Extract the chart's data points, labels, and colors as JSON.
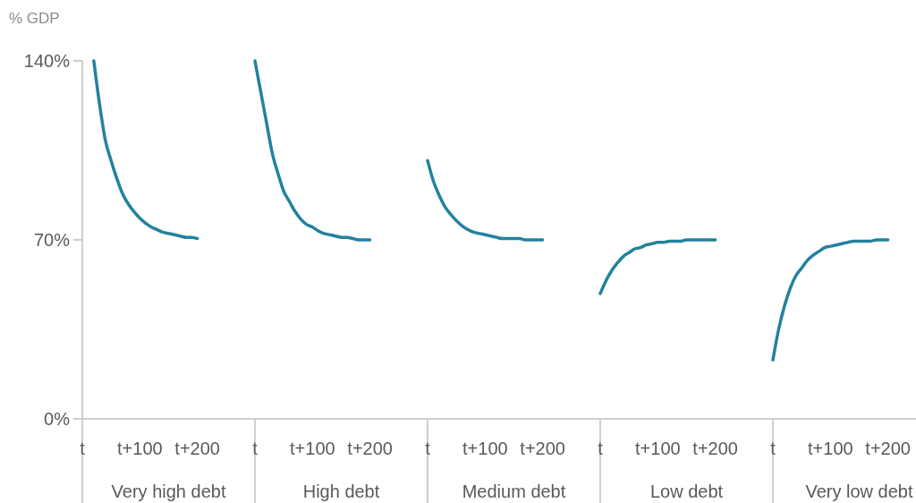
{
  "chart_data": [
    {
      "type": "line",
      "ylabel": "% GDP",
      "xlabel": "Very high debt",
      "categories": [
        "t",
        null,
        null,
        null,
        null,
        null,
        null,
        null,
        null,
        null,
        "t+100",
        null,
        null,
        null,
        null,
        null,
        null,
        null,
        null,
        null,
        "t+200",
        null,
        null,
        null,
        null,
        null,
        null,
        null,
        null,
        null,
        null
      ],
      "ylim": [
        0,
        140
      ],
      "yticks": [
        {
          "value": 0,
          "label": "0%"
        },
        {
          "value": 70,
          "label": "70%"
        },
        {
          "value": 140,
          "label": "140%"
        }
      ],
      "grid": false,
      "tick_labels": true,
      "series": [
        {
          "color": "#23829e",
          "values": [
            null,
            null,
            140,
            123,
            109,
            101,
            94,
            88,
            84,
            81,
            78.5,
            76.5,
            75,
            74,
            73,
            72.5,
            72,
            71.5,
            71,
            71,
            70.5,
            null,
            null,
            null,
            null,
            null,
            null,
            null,
            null,
            null,
            null
          ]
        }
      ]
    },
    {
      "type": "line",
      "xlabel": "High debt",
      "categories": [
        "t",
        null,
        null,
        null,
        null,
        null,
        null,
        null,
        null,
        null,
        "t+100",
        null,
        null,
        null,
        null,
        null,
        null,
        null,
        null,
        null,
        "t+200",
        null,
        null,
        null,
        null,
        null,
        null,
        null,
        null,
        null,
        null
      ],
      "ylim": [
        0,
        140
      ],
      "grid": false,
      "tick_labels": "x",
      "series": [
        {
          "color": "#23829e",
          "values": [
            140,
            128,
            116,
            104,
            96,
            89,
            85,
            81,
            78,
            76,
            75,
            73.5,
            72.5,
            72,
            71.5,
            71,
            71,
            70.5,
            70,
            70,
            70,
            null,
            null,
            null,
            null,
            null,
            null,
            null,
            null,
            null,
            null
          ]
        }
      ]
    },
    {
      "type": "line",
      "xlabel": "Medium debt",
      "categories": [
        "t",
        null,
        null,
        null,
        null,
        null,
        null,
        null,
        null,
        null,
        "t+100",
        null,
        null,
        null,
        null,
        null,
        null,
        null,
        null,
        null,
        "t+200",
        null,
        null,
        null,
        null,
        null,
        null,
        null,
        null,
        null,
        null
      ],
      "ylim": [
        0,
        140
      ],
      "grid": false,
      "tick_labels": "x",
      "series": [
        {
          "color": "#23829e",
          "values": [
            101,
            93,
            87.5,
            83,
            80,
            77.5,
            75.5,
            74,
            73,
            72.5,
            72,
            71.5,
            71,
            70.5,
            70.5,
            70.5,
            70.5,
            70,
            70,
            70,
            70,
            null,
            null,
            null,
            null,
            null,
            null,
            null,
            null,
            null,
            null
          ]
        }
      ]
    },
    {
      "type": "line",
      "xlabel": "Low debt",
      "categories": [
        "t",
        null,
        null,
        null,
        null,
        null,
        null,
        null,
        null,
        null,
        "t+100",
        null,
        null,
        null,
        null,
        null,
        null,
        null,
        null,
        null,
        "t+200",
        null,
        null,
        null,
        null,
        null,
        null,
        null,
        null,
        null,
        null
      ],
      "ylim": [
        0,
        140
      ],
      "grid": false,
      "tick_labels": "x",
      "series": [
        {
          "color": "#23829e",
          "values": [
            49,
            54,
            58,
            61,
            63.5,
            65,
            66.5,
            67,
            68,
            68.5,
            69,
            69,
            69.5,
            69.5,
            69.5,
            70,
            70,
            70,
            70,
            70,
            70,
            null,
            null,
            null,
            null,
            null,
            null,
            null,
            null,
            null,
            null
          ]
        }
      ]
    },
    {
      "type": "line",
      "xlabel": "Very low debt",
      "categories": [
        "t",
        null,
        null,
        null,
        null,
        null,
        null,
        null,
        null,
        null,
        "t+100",
        null,
        null,
        null,
        null,
        null,
        null,
        null,
        null,
        null,
        "t+200",
        null,
        null,
        null,
        null,
        null,
        null,
        null,
        null,
        null,
        null
      ],
      "ylim": [
        0,
        140
      ],
      "grid": false,
      "tick_labels": "x",
      "series": [
        {
          "color": "#23829e",
          "values": [
            23,
            35,
            44,
            51,
            56,
            59,
            62,
            64,
            65.5,
            67,
            67.5,
            68,
            68.5,
            69,
            69.5,
            69.5,
            69.5,
            69.5,
            70,
            70,
            70,
            null,
            null,
            null,
            null,
            null,
            null,
            null,
            null,
            null,
            null
          ]
        }
      ]
    }
  ]
}
